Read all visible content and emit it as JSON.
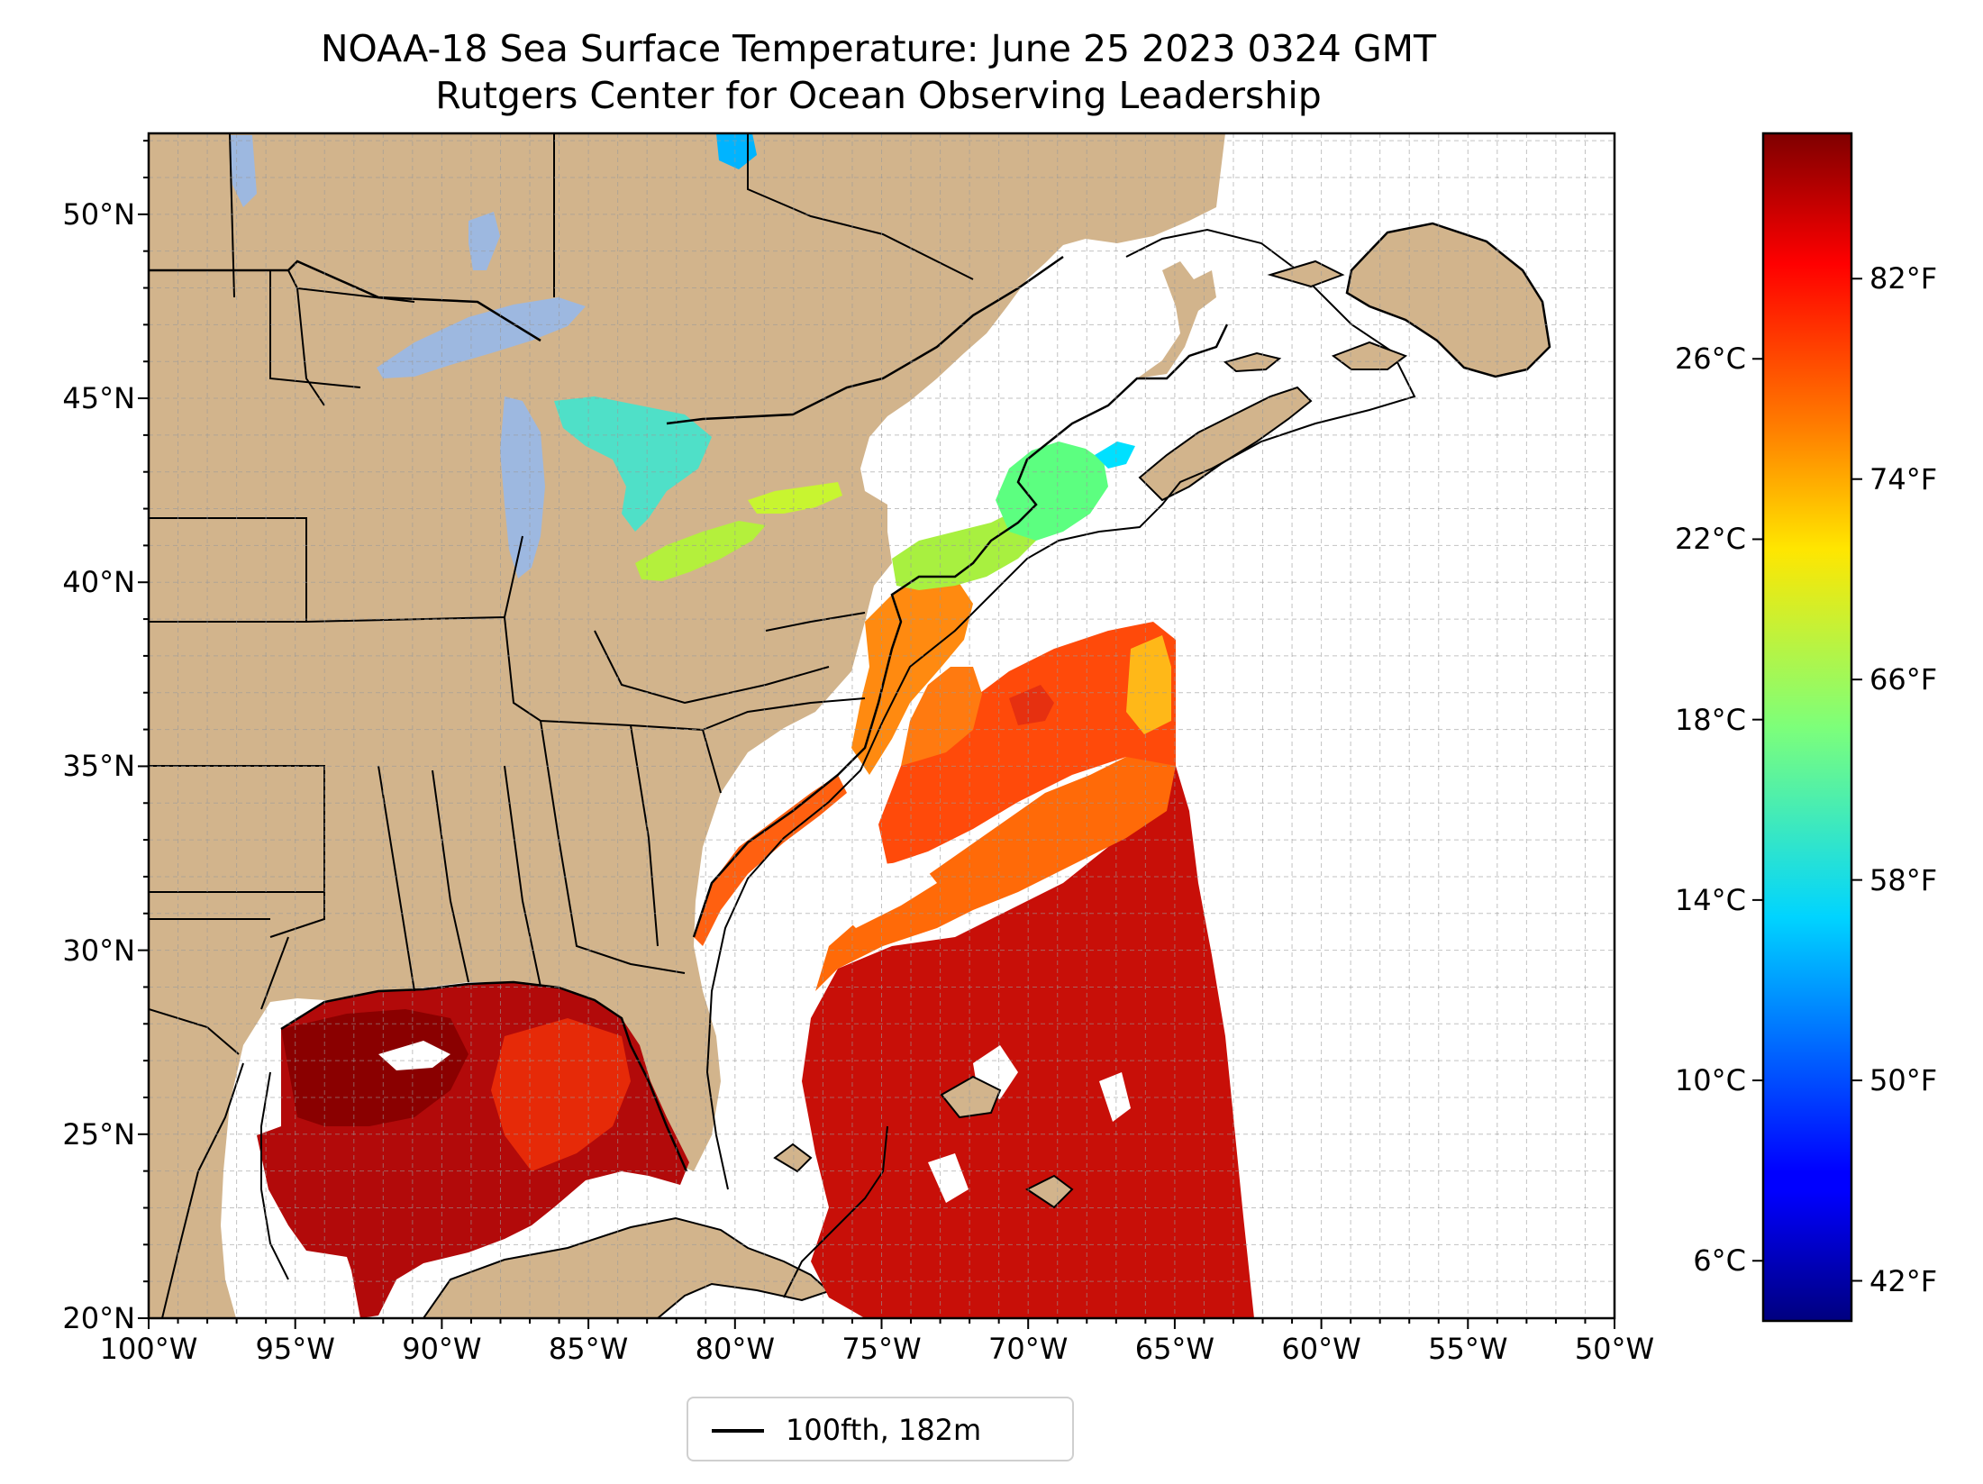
{
  "title": "NOAA-18 Sea Surface Temperature: June 25 2023 0324 GMT",
  "subtitle": "Rutgers Center for Ocean Observing Leadership",
  "map": {
    "lon_range": [
      -100,
      -50
    ],
    "lat_range": [
      20,
      52.2
    ],
    "gridlines": true,
    "lon_ticks": [
      {
        "value": -100,
        "label": "100°W"
      },
      {
        "value": -95,
        "label": "95°W"
      },
      {
        "value": -90,
        "label": "90°W"
      },
      {
        "value": -85,
        "label": "85°W"
      },
      {
        "value": -80,
        "label": "80°W"
      },
      {
        "value": -75,
        "label": "75°W"
      },
      {
        "value": -70,
        "label": "70°W"
      },
      {
        "value": -65,
        "label": "65°W"
      },
      {
        "value": -60,
        "label": "60°W"
      },
      {
        "value": -55,
        "label": "55°W"
      },
      {
        "value": -50,
        "label": "50°W"
      }
    ],
    "lat_ticks": [
      {
        "value": 50,
        "label": "50°N"
      },
      {
        "value": 45,
        "label": "45°N"
      },
      {
        "value": 40,
        "label": "40°N"
      },
      {
        "value": 35,
        "label": "35°N"
      },
      {
        "value": 30,
        "label": "30°N"
      },
      {
        "value": 25,
        "label": "25°N"
      },
      {
        "value": 20,
        "label": "20°N"
      }
    ],
    "land_color": "#d2b48c",
    "lake_color": "#9db8e0",
    "border_color": "#000000"
  },
  "colorbar": {
    "colormap": "jet",
    "range_f": [
      40.4,
      87.8
    ],
    "celsius_ticks": [
      {
        "value": 26,
        "label": "26°C"
      },
      {
        "value": 22,
        "label": "22°C"
      },
      {
        "value": 18,
        "label": "18°C"
      },
      {
        "value": 14,
        "label": "14°C"
      },
      {
        "value": 10,
        "label": "10°C"
      },
      {
        "value": 6,
        "label": "6°C"
      }
    ],
    "fahrenheit_ticks": [
      {
        "value": 82,
        "label": "82°F"
      },
      {
        "value": 74,
        "label": "74°F"
      },
      {
        "value": 66,
        "label": "66°F"
      },
      {
        "value": 58,
        "label": "58°F"
      },
      {
        "value": 50,
        "label": "50°F"
      },
      {
        "value": 42,
        "label": "42°F"
      }
    ]
  },
  "legend": {
    "label": "100fth, 182m",
    "line_color": "#000000"
  }
}
